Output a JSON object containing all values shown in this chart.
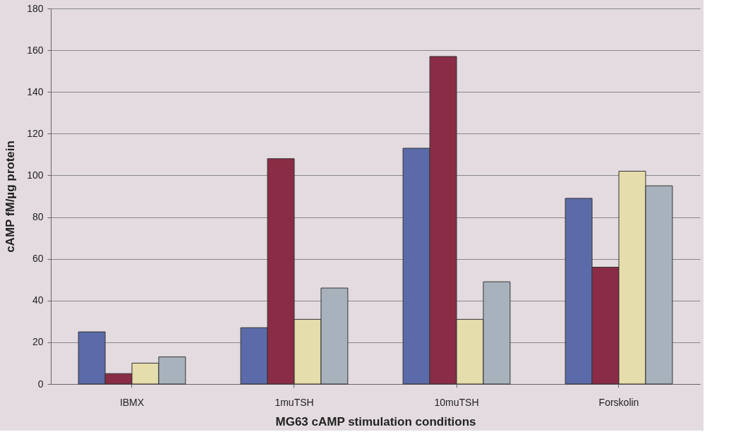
{
  "chart_data": {
    "type": "bar",
    "xlabel": "MG63 cAMP stimulation conditions",
    "ylabel": "cAMP fM/µg protein",
    "categories": [
      "IBMX",
      "1muTSH",
      "10muTSH",
      "Forskolin"
    ],
    "series": [
      {
        "color": "#5b6aa8",
        "values": [
          25,
          27,
          113,
          89
        ]
      },
      {
        "color": "#8a2c45",
        "values": [
          5,
          108,
          157,
          56
        ]
      },
      {
        "color": "#e5ddab",
        "values": [
          10,
          31,
          31,
          102
        ]
      },
      {
        "color": "#a8b2bd",
        "values": [
          13,
          46,
          49,
          95
        ]
      }
    ],
    "ylim": [
      0,
      180
    ],
    "yticks": [
      0,
      20,
      40,
      60,
      80,
      100,
      120,
      140,
      160,
      180
    ],
    "grid": "y",
    "legend": false
  }
}
